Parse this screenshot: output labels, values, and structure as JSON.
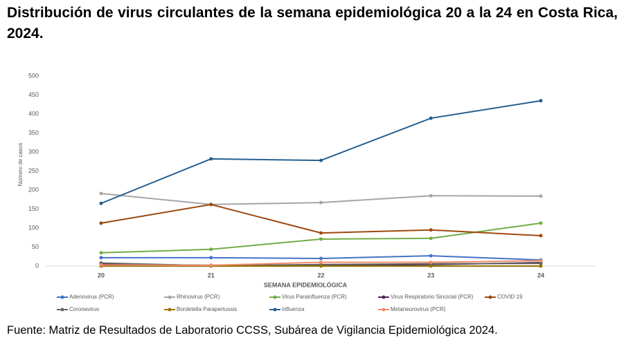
{
  "chart_data": {
    "type": "line",
    "title": "Distribución de virus circulantes de la semana epidemiológica 20 a la 24 en Costa Rica, 2024.",
    "y_label": "Número de casos",
    "x_label": "SEMANA EPIDEMIOLÓGICA",
    "source": "Fuente: Matriz de Resultados de Laboratorio CCSS, Subárea de Vigilancia Epidemiológica 2024.",
    "categories": [
      "20",
      "21",
      "22",
      "23",
      "24"
    ],
    "ylim": [
      0,
      500
    ],
    "yticks": [
      0,
      50,
      100,
      150,
      200,
      250,
      300,
      350,
      400,
      450,
      500
    ],
    "grid": false,
    "legend": "bottom",
    "series": [
      {
        "name": "Adenovirus (PCR)",
        "color": "#4472c4",
        "values": [
          22,
          22,
          20,
          27,
          16
        ]
      },
      {
        "name": "Rhinovirus (PCR)",
        "color": "#a5a5a5",
        "values": [
          191,
          162,
          167,
          185,
          184
        ]
      },
      {
        "name": "Virus Parainfluenza (PCR)",
        "color": "#70ad47",
        "values": [
          35,
          44,
          71,
          73,
          113
        ]
      },
      {
        "name": "Virus Respiratorio Sincicial (PCR)",
        "color": "#4b2551",
        "values": [
          5,
          2,
          2,
          4,
          9
        ]
      },
      {
        "name": "COVID 19",
        "color": "#9e480e",
        "values": [
          113,
          162,
          87,
          95,
          80
        ]
      },
      {
        "name": "Coronavirus",
        "color": "#636363",
        "values": [
          8,
          1,
          4,
          6,
          7
        ]
      },
      {
        "name": "Bordetella Parapertussis",
        "color": "#997300",
        "values": [
          0,
          0,
          0,
          0,
          0
        ]
      },
      {
        "name": "Influenza",
        "color": "#255e91",
        "values": [
          165,
          282,
          278,
          389,
          435
        ]
      },
      {
        "name": "Metaneurovirus (PCR)",
        "color": "#f08c6c",
        "values": [
          3,
          2,
          10,
          10,
          14
        ]
      }
    ]
  }
}
